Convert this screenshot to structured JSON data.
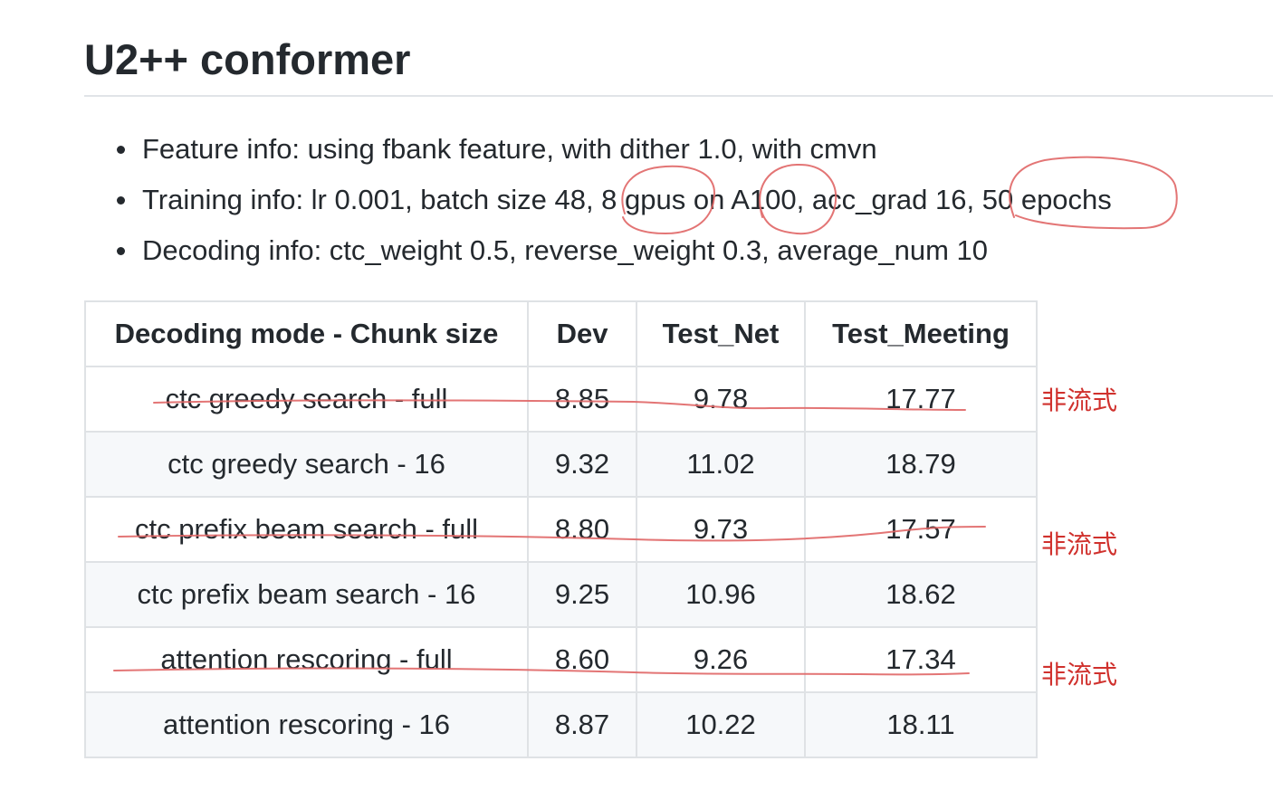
{
  "title": "U2++ conformer",
  "info": [
    {
      "text": "Feature info: using fbank feature, with dither 1.0, with cmvn"
    },
    {
      "text": "Training info: lr 0.001, batch size 48, 8 gpus on A100, acc_grad 16, 50 epochs"
    },
    {
      "text": "Decoding info: ctc_weight 0.5, reverse_weight 0.3, average_num 10"
    }
  ],
  "table": {
    "headers": [
      "Decoding mode - Chunk size",
      "Dev",
      "Test_Net",
      "Test_Meeting"
    ],
    "rows": [
      {
        "cells": [
          "ctc greedy search - full",
          "8.85",
          "9.78",
          "17.77"
        ],
        "struck": true
      },
      {
        "cells": [
          "ctc greedy search - 16",
          "9.32",
          "11.02",
          "18.79"
        ],
        "struck": false
      },
      {
        "cells": [
          "ctc prefix beam search - full",
          "8.80",
          "9.73",
          "17.57"
        ],
        "struck": true
      },
      {
        "cells": [
          "ctc prefix beam search - 16",
          "9.25",
          "10.96",
          "18.62"
        ],
        "struck": false
      },
      {
        "cells": [
          "attention rescoring - full",
          "8.60",
          "9.26",
          "17.34"
        ],
        "struck": true
      },
      {
        "cells": [
          "attention rescoring - 16",
          "8.87",
          "10.22",
          "18.11"
        ],
        "struck": false
      }
    ]
  },
  "annotations": {
    "notes": [
      "非流式",
      "非流式",
      "非流式"
    ],
    "color": "#d0312d",
    "circled": [
      "8 gpus",
      "A100",
      "50 epochs"
    ]
  }
}
